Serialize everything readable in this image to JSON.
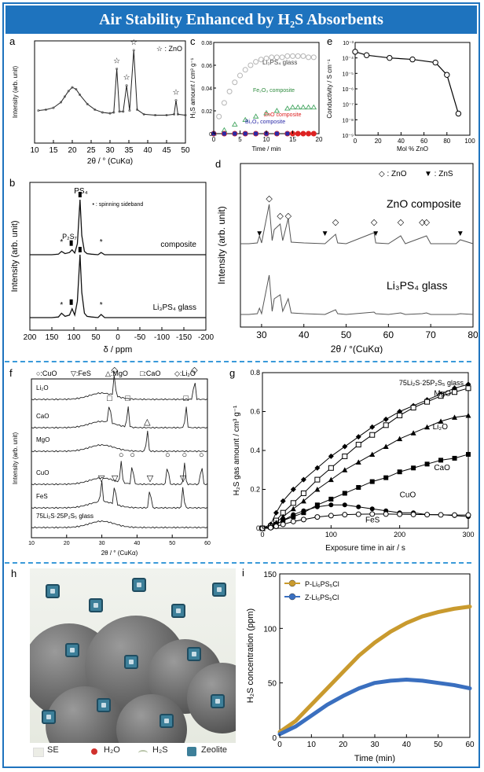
{
  "title": "Air Stability Enhanced by H₂S Absorbents",
  "panel_letters": {
    "a": "a",
    "b": "b",
    "c": "c",
    "d": "d",
    "e": "e",
    "f": "f",
    "g": "g",
    "h": "h",
    "i": "i"
  },
  "chart_data": [
    {
      "id": "a",
      "type": "line",
      "xlabel": "2θ / ° (CuKα)",
      "ylabel": "Intensity (arb. unit)",
      "xlim": [
        10,
        50
      ],
      "xticks": [
        10,
        15,
        20,
        25,
        30,
        35,
        40,
        45,
        50
      ],
      "legend": "☆ : ZnO",
      "peaks": [
        31.8,
        34.4,
        36.3,
        47.5
      ],
      "x": [
        11,
        13,
        15,
        17,
        18,
        19,
        20,
        21,
        22,
        24,
        26,
        28,
        30,
        31,
        31.8,
        32.5,
        33.5,
        34.4,
        35.2,
        36.3,
        37.2,
        39,
        42,
        45,
        47,
        47.5,
        48,
        50
      ],
      "y": [
        35,
        36,
        38,
        44,
        50,
        56,
        60,
        58,
        52,
        42,
        36,
        33,
        32,
        33,
        80,
        34,
        34,
        62,
        35,
        100,
        36,
        31,
        30,
        30,
        31,
        46,
        31,
        30
      ]
    },
    {
      "id": "b",
      "type": "line",
      "xlabel": "δ / ppm",
      "ylabel": "Intensity (arb. unit)",
      "xlim": [
        200,
        -200
      ],
      "xticks": [
        200,
        150,
        100,
        50,
        0,
        -50,
        -100,
        -150,
        -200
      ],
      "peak_labels": [
        "PS₄",
        "P₂S₇"
      ],
      "annotation": "• : spinning sideband",
      "series": [
        {
          "name": "composite",
          "x": [
            200,
            150,
            135,
            128,
            120,
            110,
            104,
            98,
            92,
            86,
            82,
            76,
            70,
            60,
            45,
            38,
            30,
            0,
            -200
          ],
          "y": [
            0,
            0,
            1,
            6,
            2,
            4,
            9,
            3,
            20,
            100,
            35,
            6,
            2,
            1,
            0,
            4,
            0,
            0,
            0
          ]
        },
        {
          "name": "Li₃PS₄ glass",
          "x": [
            200,
            150,
            135,
            128,
            120,
            110,
            104,
            98,
            92,
            86,
            82,
            76,
            70,
            60,
            45,
            38,
            30,
            0,
            -200
          ],
          "y": [
            0,
            0,
            1,
            7,
            2,
            4,
            14,
            4,
            26,
            100,
            40,
            7,
            2,
            1,
            0,
            5,
            0,
            0,
            0
          ]
        }
      ]
    },
    {
      "id": "c",
      "type": "scatter",
      "xlabel": "Time / min",
      "ylabel": "H₂S amount / cm³ g⁻¹",
      "xlim": [
        0,
        20
      ],
      "ylim": [
        0,
        0.08
      ],
      "xticks": [
        0,
        5,
        10,
        15,
        20
      ],
      "yticks": [
        0,
        0.02,
        0.04,
        0.06,
        0.08
      ],
      "series": [
        {
          "name": "Li₃PS₄ glass",
          "x": [
            0,
            1,
            2,
            3,
            4,
            5,
            6,
            7,
            8,
            9,
            10,
            11,
            12,
            13,
            14,
            15,
            16,
            17,
            18,
            19
          ],
          "y": [
            0,
            0.015,
            0.027,
            0.037,
            0.045,
            0.051,
            0.056,
            0.06,
            0.063,
            0.065,
            0.066,
            0.067,
            0.067,
            0.067,
            0.068,
            0.068,
            0.068,
            0.068,
            0.067,
            0.067
          ]
        },
        {
          "name": "Fe₂O₃ composite",
          "x": [
            0,
            2,
            4,
            6,
            8,
            10,
            12,
            14,
            15,
            16,
            17,
            18,
            19
          ],
          "y": [
            0,
            0.003,
            0.008,
            0.012,
            0.015,
            0.018,
            0.02,
            0.022,
            0.023,
            0.023,
            0.023,
            0.023,
            0.023
          ]
        },
        {
          "name": "ZnO composite",
          "x": [
            0,
            2,
            4,
            6,
            8,
            10,
            12,
            14,
            15,
            16,
            17,
            18,
            19
          ],
          "y": [
            0,
            0,
            0,
            0,
            0,
            0,
            0,
            0,
            0,
            0,
            0,
            0,
            0
          ]
        },
        {
          "name": "Bi₂O₃ composite",
          "x": [
            0,
            2,
            4,
            6,
            8,
            10,
            12,
            14
          ],
          "y": [
            0,
            0,
            0,
            0,
            0,
            0,
            0,
            0
          ]
        }
      ]
    },
    {
      "id": "d",
      "type": "line",
      "xlabel": "2θ / °(CuKα)",
      "ylabel": "Intensity (arb. unit)",
      "xlim": [
        25,
        80
      ],
      "xticks": [
        30,
        40,
        50,
        60,
        70,
        80
      ],
      "legend": [
        "◇ : ZnO",
        "▼ : ZnS"
      ],
      "series": [
        {
          "name": "ZnO composite",
          "x": [
            25,
            27,
            29,
            29.5,
            30,
            31.8,
            32.5,
            33,
            34.4,
            35,
            36.3,
            37,
            40,
            45,
            47.5,
            48,
            50,
            56.6,
            57,
            60,
            62.9,
            64,
            68,
            69,
            70,
            76,
            77,
            80
          ],
          "y": [
            30,
            30,
            31,
            40,
            31,
            80,
            34,
            48,
            55,
            34,
            62,
            32,
            31,
            30,
            42,
            31,
            30,
            44,
            31,
            30,
            40,
            30,
            38,
            40,
            30,
            30,
            35,
            30
          ]
        },
        {
          "name": "Li₃PS₄ glass",
          "x": [
            25,
            27,
            29,
            29.5,
            30,
            31.8,
            32.5,
            33,
            34.4,
            35,
            36.3,
            37,
            40,
            45,
            47.5,
            48,
            50,
            56.6,
            57,
            60,
            62.9,
            64,
            68,
            69,
            70,
            76,
            77,
            80
          ],
          "y": [
            20,
            20,
            21,
            28,
            21,
            70,
            24,
            40,
            45,
            24,
            40,
            22,
            21,
            20,
            26,
            21,
            20,
            23,
            21,
            20,
            22,
            20,
            21,
            22,
            20,
            20,
            21,
            20
          ]
        }
      ]
    },
    {
      "id": "e",
      "type": "line",
      "xlabel": "Mol % ZnO",
      "ylabel": "Conductivity / S cm⁻¹",
      "log_y": true,
      "xlim": [
        0,
        100
      ],
      "xticks": [
        0,
        20,
        40,
        60,
        80,
        100
      ],
      "ytick_labels": [
        "10⁻³",
        "10⁻⁴",
        "10⁻⁵",
        "10⁻⁶",
        "10⁻⁷",
        "10⁻⁸",
        "10⁻⁹"
      ],
      "x": [
        0,
        10,
        30,
        50,
        70,
        80,
        90
      ],
      "y": [
        0.00025,
        0.00015,
        0.0001,
        8e-05,
        5e-05,
        8e-06,
        2.5e-08
      ]
    },
    {
      "id": "f",
      "type": "line",
      "xlabel": "2θ / ° (CuKα)",
      "ylabel": "Intensity (arb. unit)",
      "xlim": [
        10,
        60
      ],
      "xticks": [
        10,
        20,
        30,
        40,
        50,
        60
      ],
      "legend": [
        "○:CuO",
        "▽:FeS",
        "△:MgO",
        "□:CaO",
        "◇:Li₂O"
      ],
      "series": [
        {
          "name": "Li₂O",
          "peaks": [
            33.6,
            56.3
          ]
        },
        {
          "name": "CaO",
          "peaks": [
            32.2,
            37.4,
            53.9
          ]
        },
        {
          "name": "MgO",
          "peaks": [
            42.9
          ]
        },
        {
          "name": "CuO",
          "peaks": [
            35.5,
            38.7,
            48.7,
            53.5,
            58.3
          ]
        },
        {
          "name": "FeS",
          "peaks": [
            29.9,
            33.7,
            43.7,
            53.1
          ]
        },
        {
          "name": "75Li₂S·25P₂S₅ glass",
          "peaks": []
        }
      ]
    },
    {
      "id": "g",
      "type": "line",
      "xlabel": "Exposure time in air / s",
      "ylabel": "H₂S gas amount / cm³ g⁻¹",
      "xlim": [
        0,
        300
      ],
      "ylim": [
        0,
        0.8
      ],
      "xticks": [
        0,
        100,
        200,
        300
      ],
      "yticks": [
        0,
        0.2,
        0.4,
        0.6,
        0.8
      ],
      "series": [
        {
          "name": "75Li₂S·25P₂S₅ glass",
          "x": [
            0,
            12,
            20,
            30,
            45,
            60,
            80,
            100,
            120,
            140,
            160,
            180,
            200,
            220,
            240,
            260,
            280,
            300
          ],
          "y": [
            0,
            0.02,
            0.08,
            0.14,
            0.2,
            0.25,
            0.31,
            0.37,
            0.42,
            0.47,
            0.52,
            0.56,
            0.6,
            0.63,
            0.66,
            0.69,
            0.72,
            0.74
          ]
        },
        {
          "name": "MgO",
          "x": [
            0,
            12,
            20,
            30,
            45,
            60,
            80,
            100,
            120,
            140,
            160,
            180,
            200,
            220,
            240,
            260,
            280,
            300
          ],
          "y": [
            0,
            0.01,
            0.04,
            0.08,
            0.13,
            0.18,
            0.25,
            0.31,
            0.37,
            0.43,
            0.48,
            0.53,
            0.58,
            0.62,
            0.65,
            0.68,
            0.7,
            0.72
          ]
        },
        {
          "name": "Li₂O",
          "x": [
            0,
            12,
            20,
            30,
            45,
            60,
            80,
            100,
            120,
            140,
            160,
            180,
            200,
            220,
            240,
            260,
            280,
            300
          ],
          "y": [
            0,
            0.01,
            0.03,
            0.06,
            0.1,
            0.14,
            0.2,
            0.25,
            0.3,
            0.34,
            0.38,
            0.42,
            0.46,
            0.49,
            0.52,
            0.55,
            0.57,
            0.58
          ]
        },
        {
          "name": "CaO",
          "x": [
            0,
            12,
            20,
            30,
            45,
            60,
            80,
            100,
            120,
            140,
            160,
            180,
            200,
            220,
            240,
            260,
            280,
            300
          ],
          "y": [
            0,
            0.005,
            0.02,
            0.04,
            0.06,
            0.08,
            0.12,
            0.15,
            0.18,
            0.21,
            0.24,
            0.26,
            0.29,
            0.31,
            0.33,
            0.35,
            0.36,
            0.38
          ]
        },
        {
          "name": "CuO",
          "x": [
            0,
            12,
            20,
            30,
            45,
            60,
            80,
            100,
            120,
            140,
            160,
            180,
            200,
            220,
            240,
            260,
            280,
            300
          ],
          "y": [
            0,
            0.005,
            0.02,
            0.04,
            0.07,
            0.09,
            0.11,
            0.12,
            0.12,
            0.11,
            0.1,
            0.09,
            0.08,
            0.08,
            0.07,
            0.07,
            0.065,
            0.06
          ]
        },
        {
          "name": "FeS",
          "x": [
            0,
            12,
            20,
            30,
            45,
            60,
            80,
            100,
            120,
            140,
            160,
            180,
            200,
            220,
            240,
            260,
            280,
            300
          ],
          "y": [
            0,
            0.003,
            0.01,
            0.02,
            0.035,
            0.045,
            0.058,
            0.065,
            0.07,
            0.072,
            0.073,
            0.073,
            0.072,
            0.071,
            0.07,
            0.069,
            0.068,
            0.068
          ]
        }
      ]
    },
    {
      "id": "i",
      "type": "line",
      "xlabel": "Time (min)",
      "ylabel": "H₂S concentration (ppm)",
      "xlim": [
        0,
        60
      ],
      "ylim": [
        0,
        150
      ],
      "xticks": [
        0,
        10,
        20,
        30,
        40,
        50,
        60
      ],
      "yticks": [
        0,
        50,
        100,
        150
      ],
      "series": [
        {
          "name": "P-Li₆PS₅Cl",
          "color": "#c99a2e",
          "x": [
            0,
            5,
            10,
            15,
            20,
            25,
            30,
            35,
            40,
            45,
            50,
            55,
            60
          ],
          "y": [
            5,
            15,
            30,
            45,
            60,
            75,
            87,
            97,
            105,
            111,
            115,
            118,
            120
          ]
        },
        {
          "name": "Z-Li₆PS₅Cl",
          "color": "#3a6fbf",
          "x": [
            0,
            5,
            10,
            15,
            20,
            25,
            30,
            35,
            40,
            45,
            50,
            55,
            60
          ],
          "y": [
            3,
            10,
            20,
            30,
            38,
            45,
            50,
            52,
            53,
            52,
            50,
            48,
            45
          ]
        }
      ]
    }
  ],
  "scene": {
    "legend": [
      "SE",
      "H₂O",
      "H₂S",
      "Zeolite"
    ]
  },
  "colors": {
    "accent": "#1e73be",
    "dash": "#3a9ad9"
  }
}
